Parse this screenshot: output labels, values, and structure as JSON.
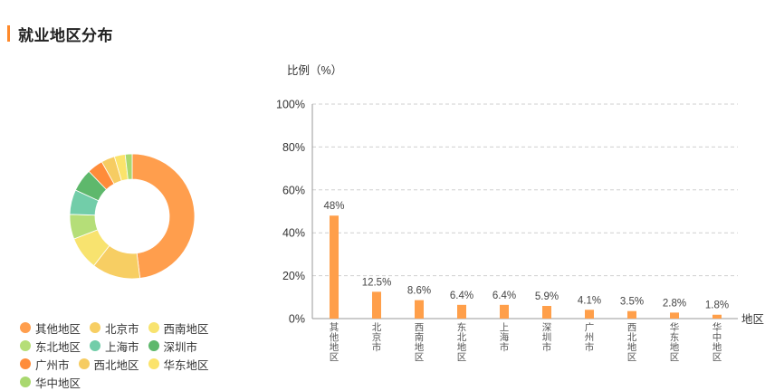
{
  "section_title": "就业地区分布",
  "colors": {
    "accent": "#ff8a2b",
    "bar": "#ff9f4a",
    "grid": "#cfcfcf"
  },
  "chart_data": [
    {
      "type": "pie",
      "donut": true,
      "categories": [
        "其他地区",
        "北京市",
        "西南地区",
        "东北地区",
        "上海市",
        "深圳市",
        "广州市",
        "西北地区",
        "华东地区",
        "华中地区"
      ],
      "values": [
        48,
        12.5,
        8.6,
        6.4,
        6.4,
        5.9,
        4.1,
        3.5,
        2.8,
        1.8
      ],
      "colors": [
        "#ff9e4d",
        "#f7ce63",
        "#f8e36f",
        "#b5de78",
        "#72cda9",
        "#5eb86c",
        "#ff8c3a",
        "#f6cc62",
        "#fbe36b",
        "#a9d86f"
      ],
      "legend_position": "bottom"
    },
    {
      "type": "bar",
      "categories": [
        "其他地区",
        "北京市",
        "西南地区",
        "东北地区",
        "上海市",
        "深圳市",
        "广州市",
        "西北地区",
        "华东地区",
        "华中地区"
      ],
      "values": [
        48,
        12.5,
        8.6,
        6.4,
        6.4,
        5.9,
        4.1,
        3.5,
        2.8,
        1.8
      ],
      "value_labels": [
        "48%",
        "12.5%",
        "8.6%",
        "6.4%",
        "6.4%",
        "5.9%",
        "4.1%",
        "3.5%",
        "2.8%",
        "1.8%"
      ],
      "ylabel": "比例（%）",
      "xlabel": "地区",
      "ylim": [
        0,
        100
      ],
      "yticks": [
        "0%",
        "20%",
        "40%",
        "60%",
        "80%",
        "100%"
      ],
      "grid": true
    }
  ]
}
